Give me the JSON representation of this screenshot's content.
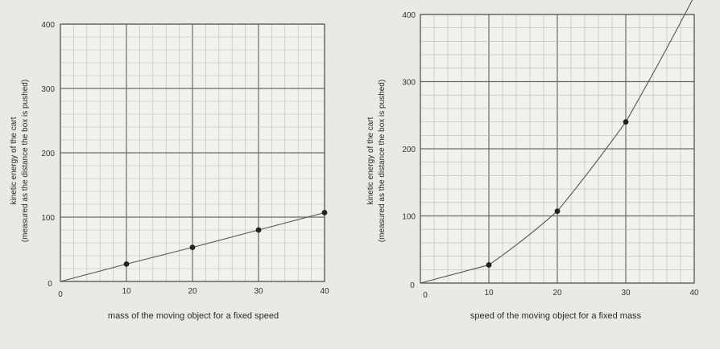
{
  "chart_data": [
    {
      "type": "line",
      "xlabel": "mass of the moving object for a fixed speed",
      "ylabel_line1": "kinetic energy of the cart",
      "ylabel_line2": "(measured as the distance the box is pushed)",
      "xlim": [
        0,
        40
      ],
      "ylim": [
        0,
        400
      ],
      "x_ticks": [
        0,
        10,
        20,
        30,
        40
      ],
      "y_ticks": [
        0,
        100,
        200,
        300,
        400
      ],
      "y_zero_label": "0",
      "grid": true,
      "x": [
        0,
        10,
        20,
        30,
        40
      ],
      "y": [
        0,
        27,
        53,
        80,
        107
      ]
    },
    {
      "type": "line",
      "xlabel": "speed of the moving object for a fixed mass",
      "ylabel_line1": "kinetic energy of the cart",
      "ylabel_line2": "(measured as the distance the box is pushed)",
      "xlim": [
        0,
        40
      ],
      "ylim": [
        0,
        400
      ],
      "x_ticks": [
        0,
        10,
        20,
        30,
        40
      ],
      "y_ticks": [
        0,
        100,
        200,
        300,
        400
      ],
      "y_zero_label": "0",
      "grid": true,
      "x": [
        0,
        10,
        20,
        30,
        40
      ],
      "y": [
        0,
        27,
        107,
        240,
        427
      ]
    }
  ]
}
